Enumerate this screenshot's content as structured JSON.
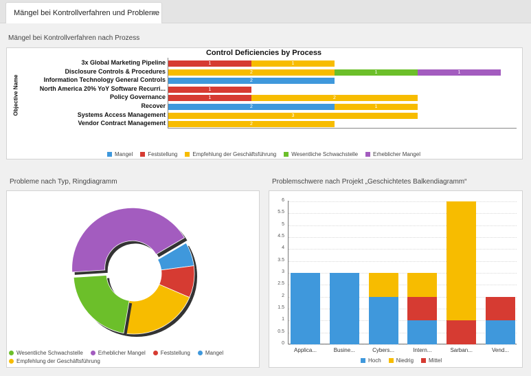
{
  "tab": {
    "label": "Mängel bei Kontrollverfahren und Probleme"
  },
  "sections": {
    "top": "Mängel bei Kontrollverfahren nach Prozess",
    "donut": "Probleme nach Typ, Ringdiagramm",
    "stacked": "Problemschwere nach Projekt „Geschichtetes Balkendiagramm“"
  },
  "colors": {
    "Mangel": "#3f98dc",
    "Feststellung": "#d63b32",
    "Empfehlung der Geschäftsführung": "#f7bc00",
    "Wesentliche Schwachstelle": "#6cbf2a",
    "Erheblicher Mangel": "#a35cbf"
  },
  "chart_data": [
    {
      "type": "bar",
      "orientation": "horizontal",
      "stacked": true,
      "title": "Control Deficiencies by Process",
      "ylabel": "Objective Name",
      "categories": [
        "3x Global Marketing Pipeline",
        "Disclosure Controls & Procedures",
        "Information Technology General Controls",
        "North America 20% YoY Software Recurri...",
        "Policy Governance",
        "Recover",
        "Systems Access Management",
        "Vendor Contract Management"
      ],
      "series": [
        {
          "name": "Mangel",
          "values": [
            0,
            0,
            2,
            0,
            0,
            2,
            0,
            0
          ]
        },
        {
          "name": "Feststellung",
          "values": [
            1,
            0,
            0,
            1,
            1,
            0,
            0,
            0
          ]
        },
        {
          "name": "Empfehlung der Geschäftsführung",
          "values": [
            1,
            2,
            0,
            0,
            2,
            1,
            3,
            2
          ]
        },
        {
          "name": "Wesentliche Schwachstelle",
          "values": [
            0,
            1,
            0,
            0,
            0,
            0,
            0,
            0
          ]
        },
        {
          "name": "Erheblicher Mangel",
          "values": [
            0,
            1,
            0,
            0,
            0,
            0,
            0,
            0
          ]
        }
      ],
      "legend": "bottom"
    },
    {
      "type": "pie",
      "variant": "donut",
      "legend": "bottom",
      "slices": [
        {
          "name": "Erheblicher Mangel",
          "value": 4
        },
        {
          "name": "Mangel",
          "value": 0.6
        },
        {
          "name": "Feststellung",
          "value": 0.8
        },
        {
          "name": "Empfehlung der Geschäftsführung",
          "value": 2
        },
        {
          "name": "Wesentliche Schwachstelle",
          "value": 2
        }
      ],
      "legend_entries": [
        "Wesentliche Schwachstelle",
        "Erheblicher Mangel",
        "Feststellung",
        "Mangel",
        "Empfehlung der Geschäftsführung"
      ]
    },
    {
      "type": "bar",
      "stacked": true,
      "categories": [
        "Applica...",
        "Busine...",
        "Cybers...",
        "Intern...",
        "Sarban...",
        "Vend..."
      ],
      "series": [
        {
          "name": "Hoch",
          "color": "#3f98dc",
          "values": [
            3,
            3,
            2,
            1,
            0,
            1
          ]
        },
        {
          "name": "Mittel",
          "color": "#d63b32",
          "values": [
            0,
            0,
            0,
            1,
            1,
            1
          ]
        },
        {
          "name": "Niedrig",
          "color": "#f7bc00",
          "values": [
            0,
            0,
            1,
            1,
            5,
            0
          ]
        }
      ],
      "legend_entries": [
        "Hoch",
        "Niedrig",
        "Mittel"
      ],
      "ylim": [
        0,
        6
      ],
      "yticks": [
        "0",
        "0.5",
        "1",
        "1.5",
        "2",
        "2.5",
        "3",
        "3.5",
        "4",
        "4.5",
        "5",
        "5.5",
        "6"
      ],
      "legend": "bottom"
    }
  ]
}
